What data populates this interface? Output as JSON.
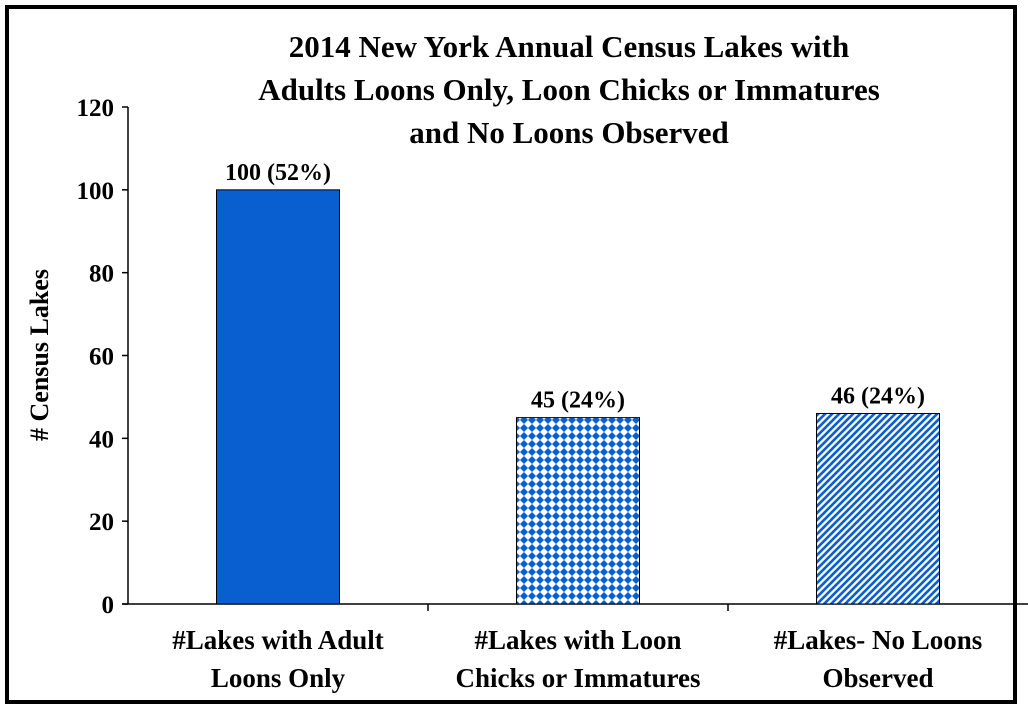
{
  "chart_data": {
    "type": "bar",
    "title": [
      "2014 New York Annual Census Lakes with",
      "Adults Loons Only, Loon Chicks or Immatures",
      "and No Loons Observed"
    ],
    "ylabel": "# Census Lakes",
    "xlabel": "",
    "ylim": [
      0,
      120
    ],
    "yticks": [
      0,
      20,
      40,
      60,
      80,
      100,
      120
    ],
    "categories": [
      [
        "#Lakes with Adult",
        "Loons Only"
      ],
      [
        "#Lakes with Loon",
        "Chicks or Immatures"
      ],
      [
        "#Lakes- No Loons",
        "Observed"
      ]
    ],
    "values": [
      100,
      45,
      46
    ],
    "data_labels": [
      "100 (52%)",
      "45 (24%)",
      "46 (24%)"
    ],
    "fills": [
      "solid",
      "diamond-grid",
      "diagonal-stripes"
    ],
    "colors": {
      "bar": "#0a5fd0",
      "outline": "#000000"
    },
    "grid": false,
    "legend": "none"
  }
}
